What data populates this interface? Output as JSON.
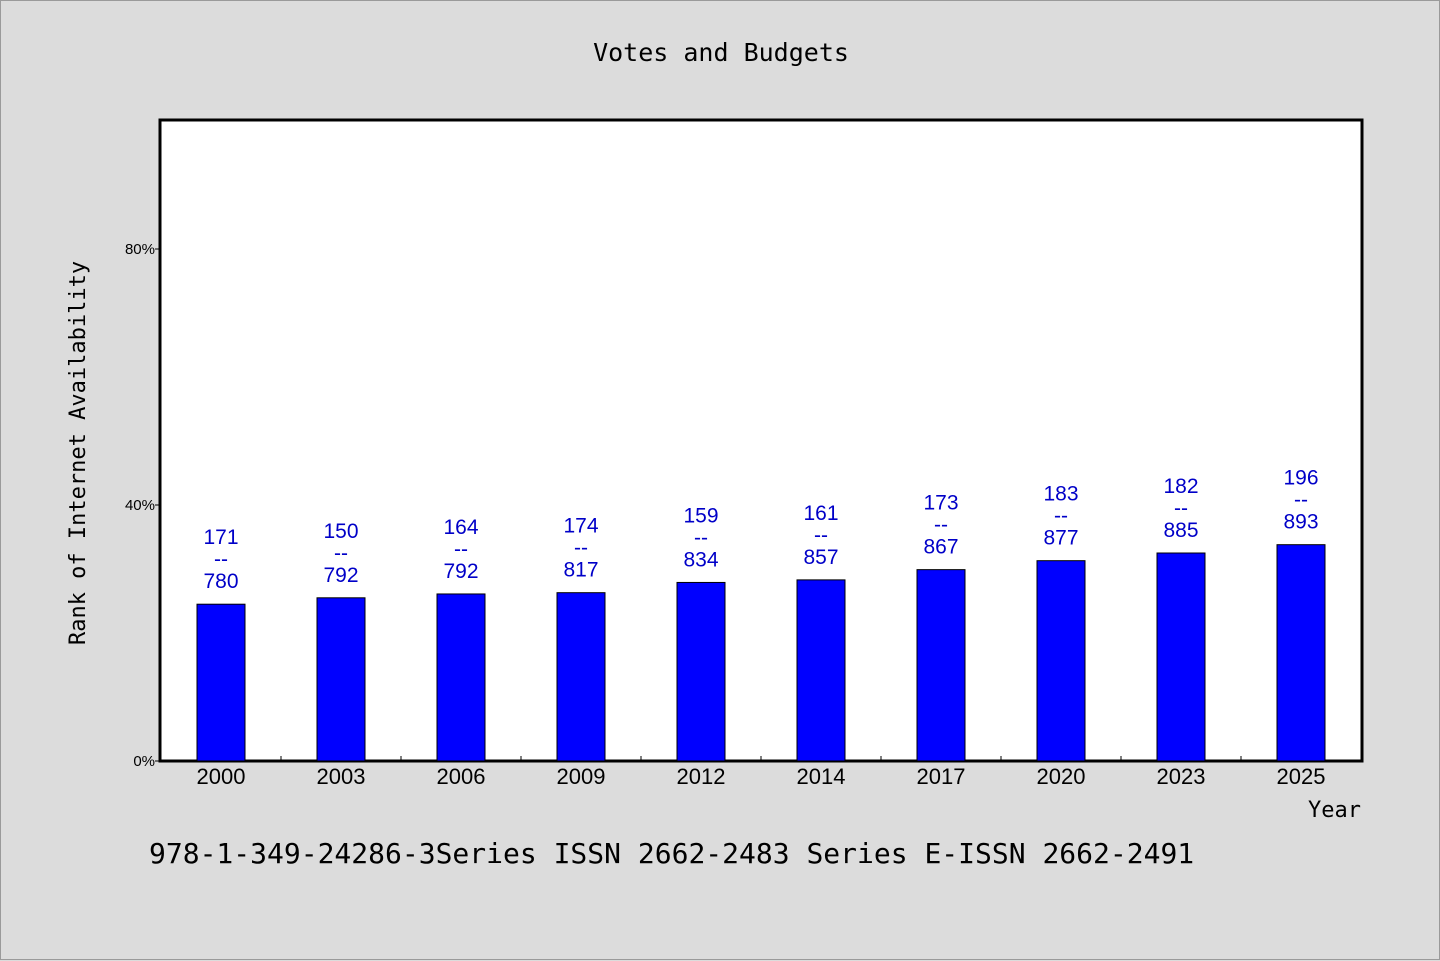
{
  "chart_data": {
    "type": "bar",
    "title": "Votes and Budgets",
    "xlabel": "Year",
    "ylabel": "Rank of Internet Availability",
    "categories": [
      "2000",
      "2003",
      "2006",
      "2009",
      "2012",
      "2014",
      "2017",
      "2020",
      "2023",
      "2025"
    ],
    "values": [
      24.5,
      25.5,
      26.1,
      26.3,
      27.9,
      28.3,
      29.9,
      31.3,
      32.5,
      33.8
    ],
    "bar_labels": [
      {
        "top": "171",
        "sep": "--",
        "bottom": "780"
      },
      {
        "top": "150",
        "sep": "--",
        "bottom": "792"
      },
      {
        "top": "164",
        "sep": "--",
        "bottom": "792"
      },
      {
        "top": "174",
        "sep": "--",
        "bottom": "817"
      },
      {
        "top": "159",
        "sep": "--",
        "bottom": "834"
      },
      {
        "top": "161",
        "sep": "--",
        "bottom": "857"
      },
      {
        "top": "173",
        "sep": "--",
        "bottom": "867"
      },
      {
        "top": "183",
        "sep": "--",
        "bottom": "877"
      },
      {
        "top": "182",
        "sep": "--",
        "bottom": "885"
      },
      {
        "top": "196",
        "sep": "--",
        "bottom": "893"
      }
    ],
    "ylim": [
      0,
      100
    ],
    "yticks": [
      0,
      40,
      80
    ],
    "ytick_labels": [
      "0%",
      "40%",
      "80%"
    ],
    "grid": false,
    "bar_color": "#0000ff",
    "label_color": "#0000c8",
    "plot_background": "#ffffff",
    "figure_background": "#dcdcdc"
  },
  "footer_text": "978-1-349-24286-3Series ISSN 2662-2483 Series E-ISSN 2662-2491"
}
